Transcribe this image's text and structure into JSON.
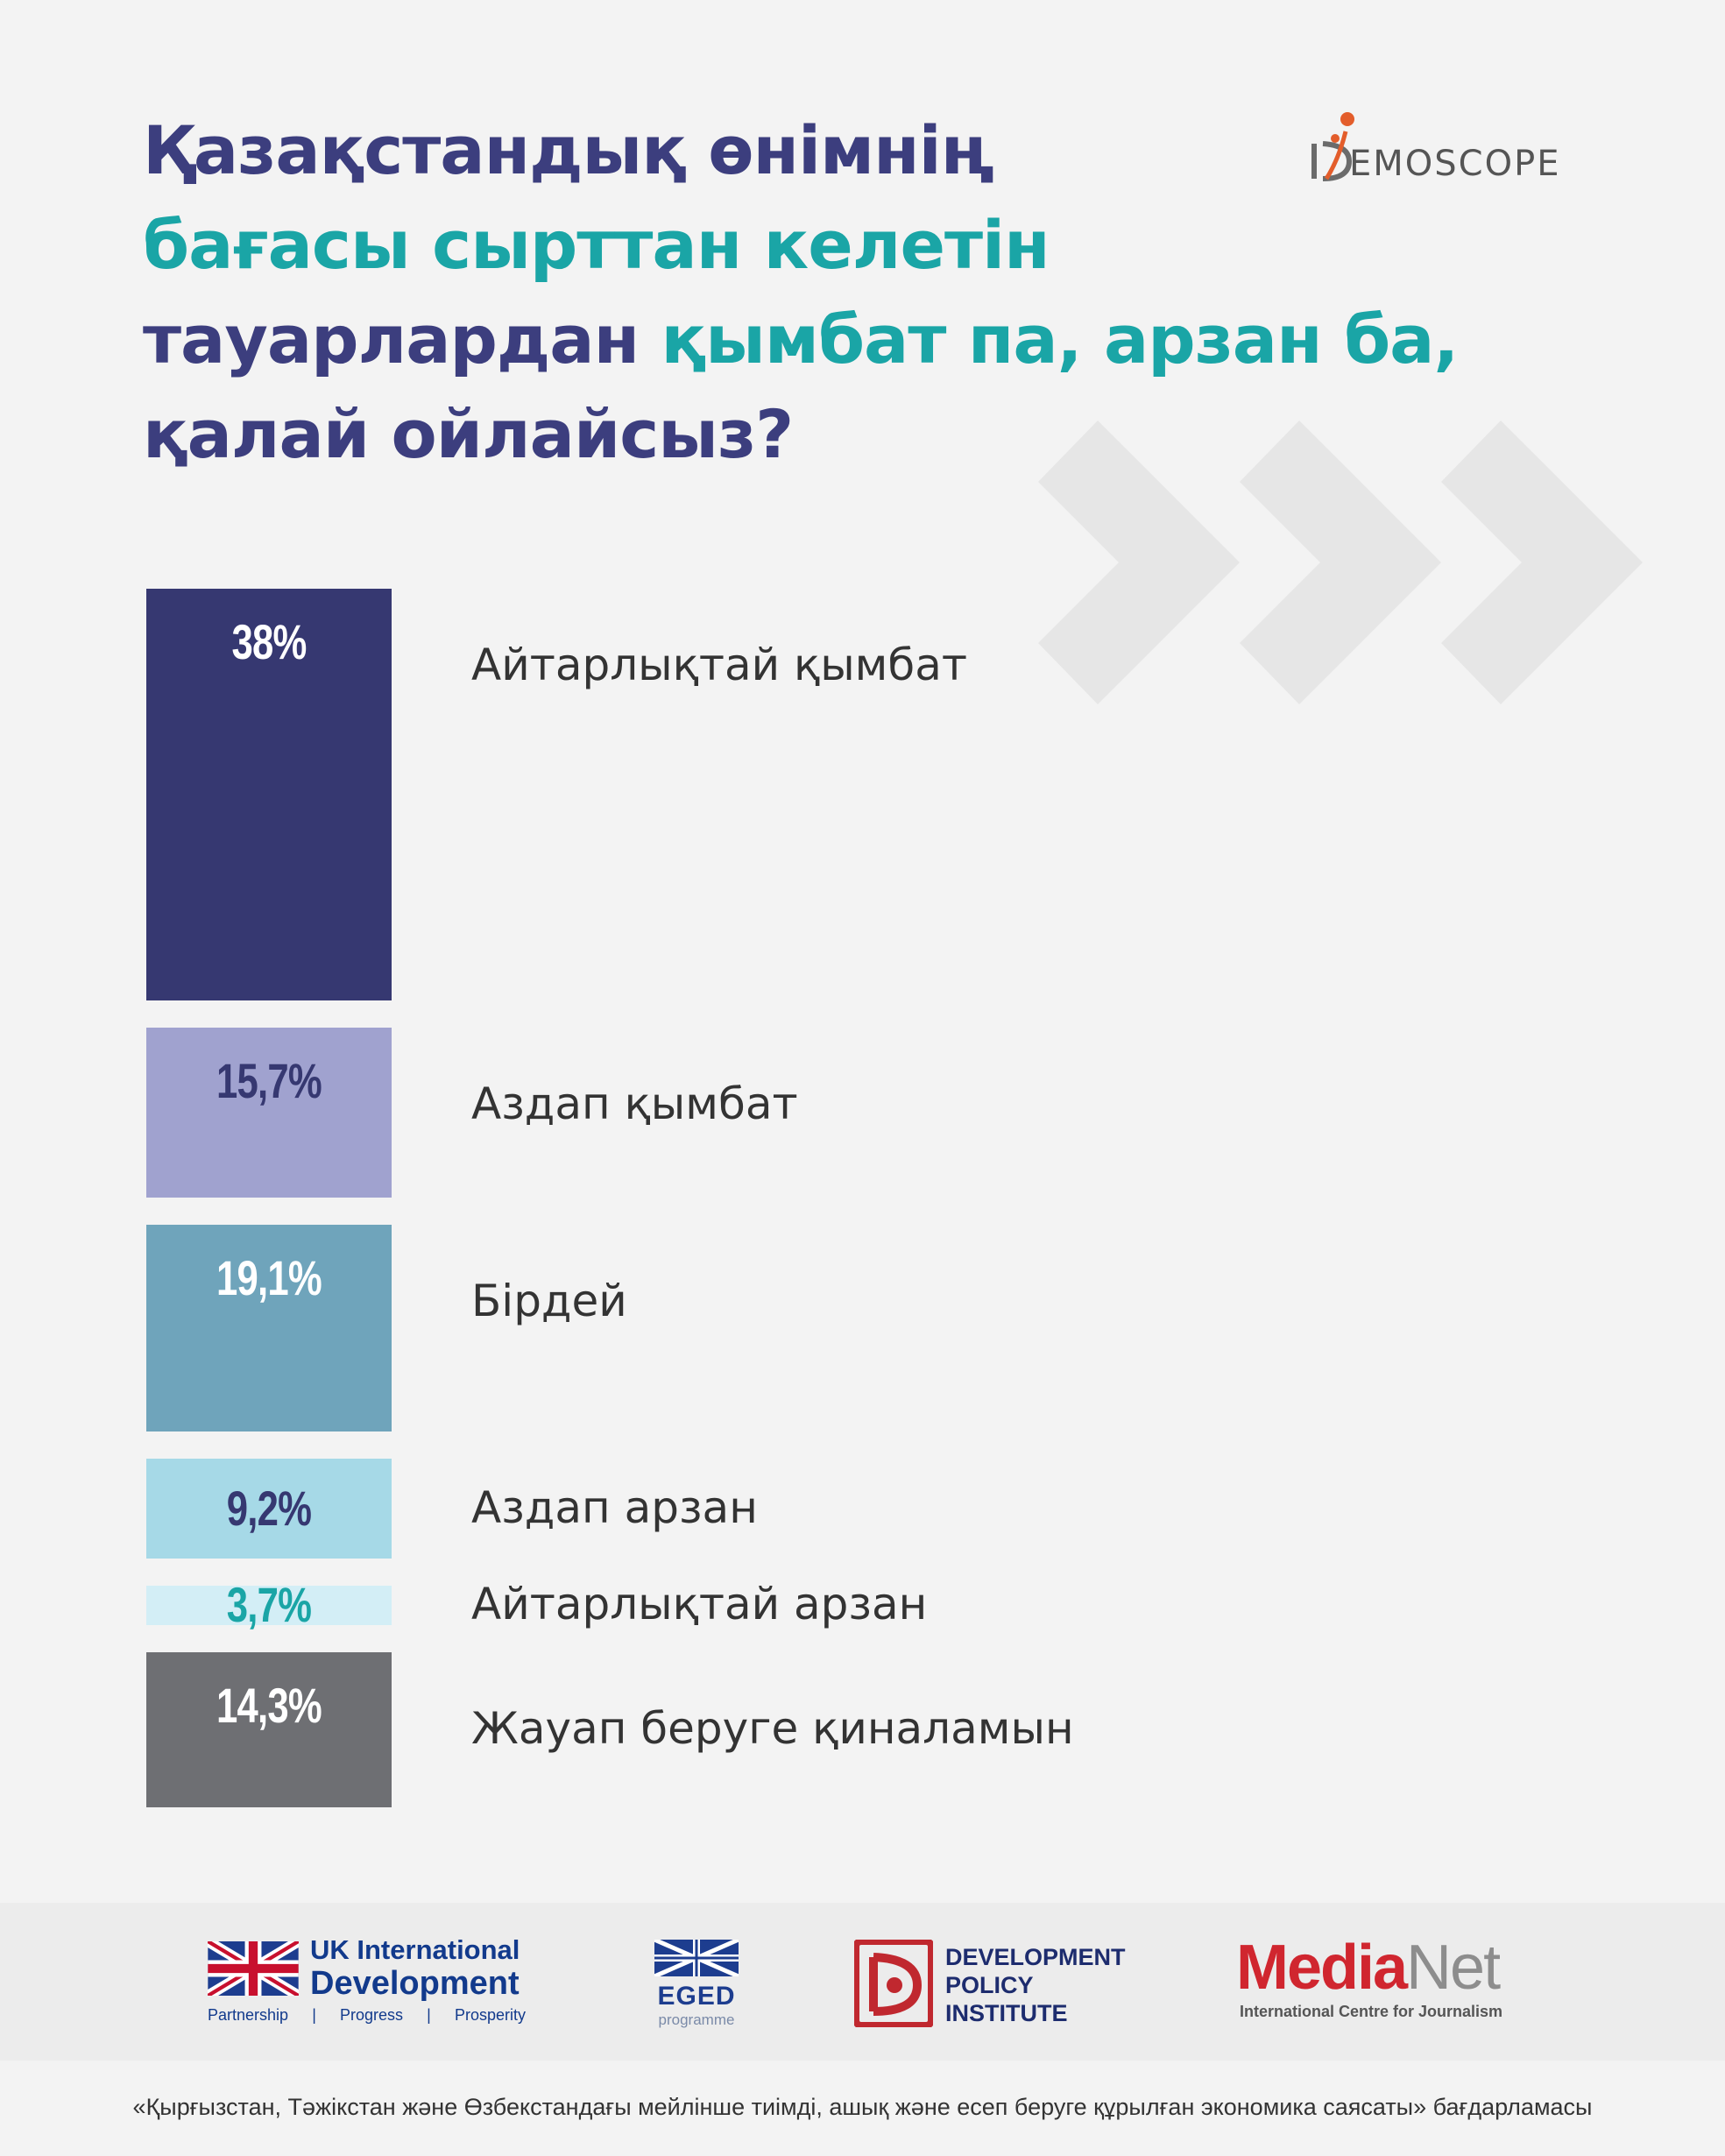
{
  "header": {
    "title_lines": [
      [
        {
          "text": "Қазақстандық өнімнің",
          "color": "navy"
        }
      ],
      [
        {
          "text": "бағасы сырттан келетін",
          "color": "teal"
        }
      ],
      [
        {
          "text": "тауарлардан ",
          "color": "navy"
        },
        {
          "text": "қымбат па, арзан ба,",
          "color": "teal"
        }
      ],
      [
        {
          "text": "қалай ойлайсыз?",
          "color": "navy"
        }
      ]
    ],
    "brand_wordmark": "EMOSCOPE"
  },
  "colors": {
    "navy": "#3c3e7e",
    "teal": "#1aa5a6"
  },
  "chart_data": {
    "type": "bar",
    "orientation": "vertical-stack",
    "title": "Қазақстандық өнімнің бағасы сырттан келетін тауарлардан қымбат па, арзан ба, қалай ойлайсыз?",
    "unit": "%",
    "categories": [
      "Айтарлықтай қымбат",
      "Аздап қымбат",
      "Бірдей",
      "Аздап арзан",
      "Айтарлықтай арзан",
      "Жауап беруге қиналамын"
    ],
    "values": [
      38,
      15.7,
      19.1,
      9.2,
      3.7,
      14.3
    ],
    "value_labels": [
      "38%",
      "15,7%",
      "19,1%",
      "9,2%",
      "3,7%",
      "14,3%"
    ],
    "bar_colors": [
      "#363871",
      "#a0a2cf",
      "#6fa4bb",
      "#a6d9e7",
      "#d3eef6",
      "#6e6f73"
    ],
    "value_label_colors": [
      "#ffffff",
      "#363871",
      "#ffffff",
      "#363871",
      "#1aa5a6",
      "#ffffff"
    ]
  },
  "footer": {
    "ukid": {
      "line1": "UK International",
      "line2": "Development",
      "tagline": [
        "Partnership",
        "|",
        "Progress",
        "|",
        "Prosperity"
      ]
    },
    "eged": {
      "name": "EGED",
      "sub": "programme"
    },
    "dpi": [
      "DEVELOPMENT",
      "POLICY",
      "INSTITUTE"
    ],
    "medianet": {
      "red": "Media",
      "grey": "Net",
      "sub": "International Centre for Journalism"
    },
    "note": "«Қырғызстан, Тәжікстан және Өзбекстандағы мейлінше тиімді, ашық және есеп беруге құрылған экономика саясаты» бағдарламасы"
  }
}
